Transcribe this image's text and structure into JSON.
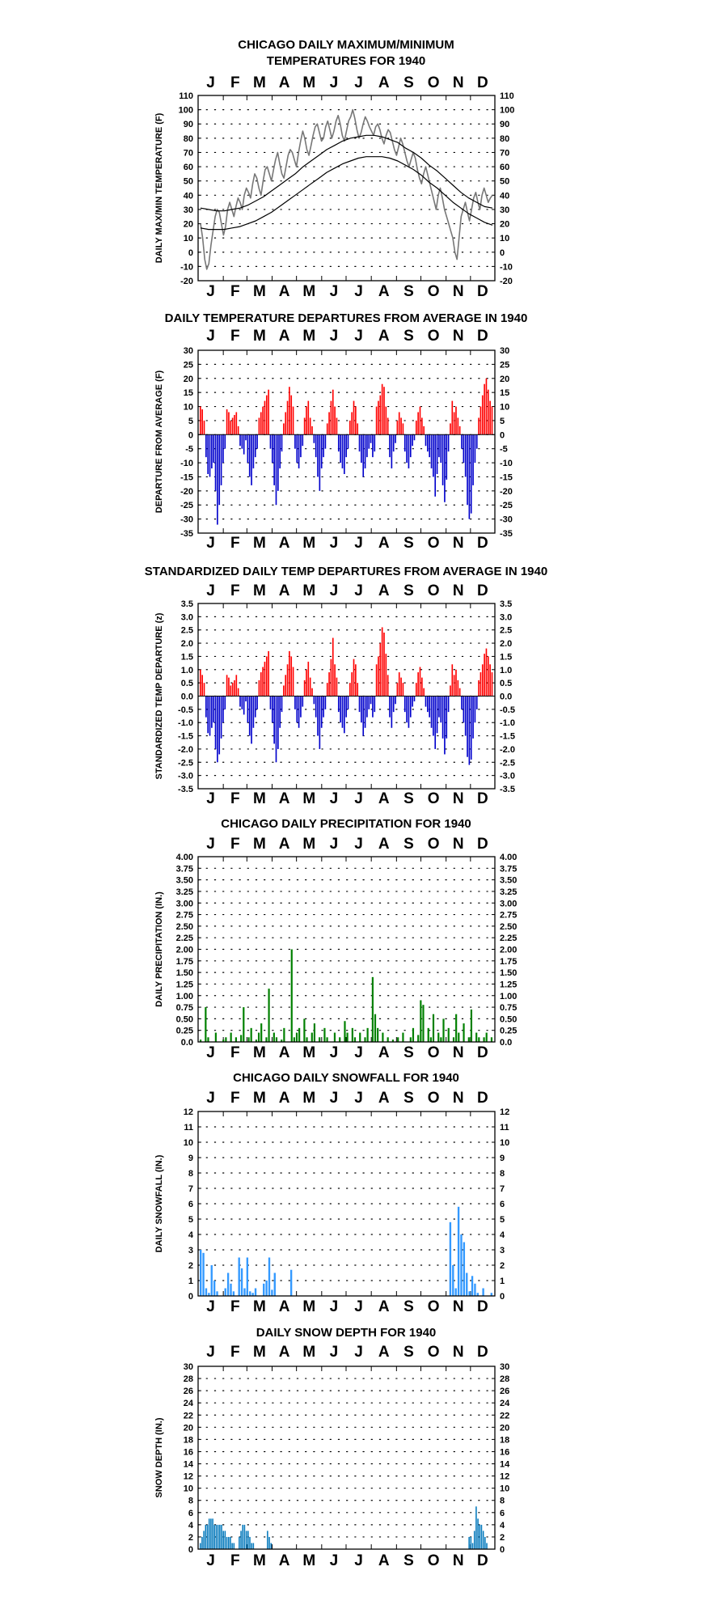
{
  "chart_data": [
    {
      "type": "line",
      "title": "CHICAGO DAILY MAXIMUM/MINIMUM",
      "subtitle": "TEMPERATURES FOR 1940",
      "ylabel": "DAILY MAX/MIN TEMPERATURE (F)",
      "ylim": [
        -20,
        110
      ],
      "yticks": [
        "110",
        "100",
        "90",
        "80",
        "70",
        "60",
        "50",
        "40",
        "30",
        "20",
        "10",
        "0",
        "-10",
        "-20"
      ],
      "months": [
        "J",
        "F",
        "M",
        "A",
        "M",
        "J",
        "J",
        "A",
        "S",
        "O",
        "N",
        "D"
      ],
      "grid": true,
      "series": [
        {
          "values": [
            20,
            10,
            -5,
            -12,
            -8,
            5,
            15,
            25,
            30,
            28,
            20,
            12,
            18,
            30,
            35,
            30,
            25,
            32,
            38,
            35,
            30,
            40,
            45,
            42,
            38,
            48,
            55,
            52,
            45,
            40,
            50,
            58,
            60,
            55,
            50,
            58,
            65,
            70,
            62,
            55,
            52,
            60,
            68,
            72,
            70,
            65,
            60,
            70,
            78,
            85,
            80,
            72,
            68,
            75,
            82,
            88,
            90,
            84,
            78,
            80,
            88,
            92,
            86,
            80,
            85,
            92,
            96,
            90,
            82,
            78,
            85,
            92,
            95,
            100,
            94,
            86,
            80,
            84,
            90,
            95,
            92,
            88,
            85,
            82,
            88,
            90,
            86,
            80,
            76,
            82,
            86,
            84,
            78,
            72,
            68,
            74,
            80,
            76,
            70,
            64,
            60,
            65,
            70,
            66,
            58,
            52,
            48,
            55,
            60,
            54,
            48,
            42,
            36,
            30,
            40,
            45,
            38,
            30,
            25,
            20,
            15,
            10,
            0,
            -5,
            10,
            25,
            30,
            35,
            28,
            22,
            30,
            38,
            42,
            35,
            30,
            40,
            45,
            40,
            35,
            38,
            40
          ]
        },
        {
          "values": [
            31,
            30,
            29,
            29,
            30,
            31,
            33,
            36,
            39,
            43,
            47,
            51,
            55,
            60,
            64,
            68,
            72,
            75,
            78,
            80,
            81,
            82,
            82,
            81,
            79,
            77,
            73,
            70,
            66,
            61,
            57,
            52,
            47,
            42,
            38,
            35,
            32,
            31
          ]
        },
        {
          "values": [
            17,
            16,
            16,
            16,
            17,
            18,
            20,
            22,
            25,
            28,
            32,
            36,
            40,
            44,
            48,
            52,
            56,
            59,
            62,
            64,
            66,
            67,
            67,
            67,
            66,
            64,
            61,
            58,
            54,
            49,
            45,
            40,
            35,
            31,
            27,
            24,
            21,
            19
          ]
        }
      ]
    },
    {
      "type": "bar",
      "title": "DAILY TEMPERATURE DEPARTURES FROM AVERAGE IN 1940",
      "ylabel": "DEPARTURE FROM AVERAGE (F)",
      "ylim": [
        -35,
        30
      ],
      "yticks": [
        "30",
        "25",
        "20",
        "15",
        "10",
        "5",
        "0",
        "-5",
        "-10",
        "-15",
        "-20",
        "-25",
        "-30",
        "-35"
      ],
      "months": [
        "J",
        "F",
        "M",
        "A",
        "M",
        "J",
        "J",
        "A",
        "S",
        "O",
        "N",
        "D"
      ],
      "grid": true,
      "values": [
        10,
        9,
        5,
        -8,
        -14,
        -15,
        -12,
        -10,
        -20,
        -32,
        -25,
        -18,
        -10,
        -5,
        9,
        8,
        5,
        6,
        7,
        8,
        3,
        -4,
        -5,
        -7,
        -2,
        -10,
        -15,
        -18,
        -12,
        -8,
        -5,
        6,
        8,
        10,
        12,
        14,
        16,
        -5,
        -10,
        -18,
        -25,
        -20,
        -12,
        -6,
        4,
        8,
        12,
        17,
        14,
        10,
        -5,
        -10,
        -12,
        -8,
        -4,
        6,
        10,
        12,
        6,
        3,
        -3,
        -8,
        -15,
        -20,
        -12,
        -8,
        -5,
        4,
        8,
        12,
        16,
        10,
        6,
        -6,
        -10,
        -12,
        -14,
        -8,
        -5,
        5,
        8,
        12,
        10,
        4,
        -6,
        -10,
        -15,
        -12,
        -8,
        -5,
        -3,
        -8,
        -6,
        10,
        12,
        14,
        18,
        17,
        10,
        6,
        -8,
        -12,
        -6,
        -3,
        5,
        8,
        6,
        4,
        -6,
        -10,
        -12,
        -8,
        -4,
        -2,
        5,
        8,
        10,
        6,
        3,
        -4,
        -6,
        -8,
        -12,
        -15,
        -22,
        -14,
        -8,
        -10,
        -18,
        -24,
        -16,
        -6,
        4,
        12,
        8,
        10,
        6,
        3,
        -5,
        -10,
        -15,
        -25,
        -30,
        -28,
        -18,
        -10,
        -5,
        6,
        10,
        14,
        18,
        20,
        16,
        12,
        10
      ],
      "colors": {
        "positive": "#ff0000",
        "negative": "#0000cc"
      }
    },
    {
      "type": "bar",
      "title": "STANDARDIZED DAILY TEMP DEPARTURES FROM AVERAGE IN 1940",
      "ylabel": "STANDARDIZED TEMP DEPARTURE (z)",
      "ylim": [
        -3.5,
        3.5
      ],
      "yticks": [
        "3.5",
        "3.0",
        "2.5",
        "2.0",
        "1.5",
        "1.0",
        "0.5",
        "0.0",
        "-0.5",
        "-1.0",
        "-1.5",
        "-2.0",
        "-2.5",
        "-3.0",
        "-3.5"
      ],
      "months": [
        "J",
        "F",
        "M",
        "A",
        "M",
        "J",
        "J",
        "A",
        "S",
        "O",
        "N",
        "D"
      ],
      "grid": true,
      "values": [
        1.0,
        0.8,
        0.5,
        -0.8,
        -1.4,
        -1.5,
        -1.2,
        -1.0,
        -2.0,
        -2.5,
        -2.2,
        -1.6,
        -1.0,
        -0.5,
        0.8,
        0.7,
        0.4,
        0.5,
        0.6,
        0.8,
        0.3,
        -0.4,
        -0.5,
        -0.7,
        -0.2,
        -1.0,
        -1.5,
        -1.8,
        -1.2,
        -0.8,
        -0.5,
        0.6,
        0.9,
        1.1,
        1.3,
        1.5,
        1.7,
        -0.5,
        -1.0,
        -1.8,
        -2.5,
        -2.0,
        -1.2,
        -0.6,
        0.4,
        0.8,
        1.2,
        1.7,
        1.5,
        1.1,
        -0.5,
        -1.0,
        -1.2,
        -0.8,
        -0.4,
        0.6,
        1.0,
        1.3,
        0.7,
        0.3,
        -0.3,
        -0.8,
        -1.5,
        -2.0,
        -1.2,
        -0.8,
        -0.5,
        0.5,
        0.9,
        1.4,
        2.2,
        1.2,
        0.7,
        -0.6,
        -1.0,
        -1.2,
        -1.4,
        -0.8,
        -0.5,
        0.5,
        0.9,
        1.4,
        1.2,
        0.5,
        -0.6,
        -1.0,
        -1.5,
        -1.2,
        -0.8,
        -0.5,
        -0.3,
        -0.8,
        -0.6,
        1.2,
        1.5,
        2.0,
        2.6,
        2.4,
        1.6,
        0.8,
        -0.8,
        -1.2,
        -0.6,
        -0.3,
        0.5,
        0.9,
        0.7,
        0.5,
        -0.6,
        -1.0,
        -1.2,
        -0.8,
        -0.4,
        -0.2,
        0.5,
        0.9,
        1.1,
        0.7,
        0.3,
        -0.4,
        -0.6,
        -0.8,
        -1.2,
        -1.5,
        -2.0,
        -1.4,
        -0.8,
        -1.0,
        -1.6,
        -2.2,
        -1.6,
        -0.6,
        0.4,
        1.2,
        0.8,
        1.0,
        0.6,
        0.3,
        -0.5,
        -1.0,
        -1.5,
        -2.3,
        -2.6,
        -2.4,
        -1.6,
        -1.0,
        -0.5,
        0.6,
        0.9,
        1.2,
        1.6,
        1.8,
        1.5,
        1.2,
        0.9
      ],
      "colors": {
        "positive": "#ff0000",
        "negative": "#0000cc"
      }
    },
    {
      "type": "bar",
      "title": "CHICAGO DAILY PRECIPITATION FOR 1940",
      "ylabel": "DAILY PRECIPITATION (IN.)",
      "ylim": [
        0,
        4
      ],
      "yticks": [
        "4.00",
        "3.75",
        "3.50",
        "3.25",
        "3.00",
        "2.75",
        "2.50",
        "2.25",
        "2.00",
        "1.75",
        "1.50",
        "1.25",
        "1.00",
        "0.75",
        "0.50",
        "0.25",
        "0.0"
      ],
      "months": [
        "J",
        "F",
        "M",
        "A",
        "M",
        "J",
        "J",
        "A",
        "S",
        "O",
        "N",
        "D"
      ],
      "grid": true,
      "values": [
        0.05,
        0,
        0.75,
        0.1,
        0,
        0,
        0.2,
        0,
        0,
        0.05,
        0.1,
        0,
        0.2,
        0,
        0.1,
        0,
        0.15,
        0.75,
        0,
        0.1,
        0.3,
        0,
        0.05,
        0.2,
        0.4,
        0,
        0.1,
        1.15,
        0,
        0.2,
        0.1,
        0,
        0.05,
        0.3,
        0,
        0,
        2.0,
        0.1,
        0.2,
        0.3,
        0,
        0.5,
        0.1,
        0,
        0.2,
        0.4,
        0,
        0.1,
        0,
        0.3,
        0.1,
        0,
        0,
        0.2,
        0,
        0.1,
        0,
        0.45,
        0.2,
        0,
        0.3,
        0.1,
        0,
        0.2,
        0,
        0.1,
        0.3,
        0,
        1.4,
        0.6,
        0.3,
        0,
        0.2,
        0,
        0.1,
        0,
        0.05,
        0,
        0.1,
        0,
        0.2,
        0,
        0,
        0.1,
        0.3,
        0,
        0.15,
        0.9,
        0.8,
        0,
        0.3,
        0.1,
        0.6,
        0,
        0.2,
        0.1,
        0.5,
        0,
        0.3,
        0,
        0.1,
        0.6,
        0.2,
        0,
        0.4,
        0,
        0.1,
        0.7,
        0,
        0.2,
        0.1,
        0,
        0.1,
        0.2,
        0,
        0.1
      ],
      "color": "#008000"
    },
    {
      "type": "bar",
      "title": "CHICAGO DAILY SNOWFALL FOR 1940",
      "ylabel": "DAILY SNOWFALL (IN.)",
      "ylim": [
        0,
        12
      ],
      "yticks": [
        "12",
        "11",
        "10",
        "9",
        "8",
        "7",
        "6",
        "5",
        "4",
        "3",
        "2",
        "1",
        "0"
      ],
      "months": [
        "J",
        "F",
        "M",
        "A",
        "M",
        "J",
        "J",
        "A",
        "S",
        "O",
        "N",
        "D"
      ],
      "grid": true,
      "values": [
        3.0,
        2.8,
        0.5,
        0.2,
        2.0,
        1.0,
        0.3,
        0,
        0,
        0.5,
        1.5,
        0.8,
        0.3,
        0,
        2.5,
        1.8,
        0.5,
        2.5,
        0.3,
        0.2,
        0.5,
        0,
        0,
        0.8,
        1.0,
        2.5,
        0.4,
        1.5,
        0,
        0,
        0,
        0,
        0,
        1.7,
        0,
        0,
        0,
        0,
        0,
        0,
        0,
        0,
        0,
        0,
        0,
        0,
        0,
        0,
        0,
        0,
        0,
        0,
        0,
        0,
        0,
        0,
        0,
        0,
        0,
        0,
        0,
        0,
        0,
        0,
        0,
        0,
        0,
        0,
        0,
        0,
        0,
        0,
        0,
        0,
        0,
        0,
        0,
        0,
        0,
        0,
        0,
        0,
        0,
        0,
        0,
        0,
        0,
        0,
        0,
        0,
        0,
        4.8,
        2.0,
        0.5,
        5.8,
        4.0,
        3.5,
        1.5,
        0.3,
        1.3,
        0.8,
        0.2,
        0,
        0.5,
        0,
        0,
        0.2
      ],
      "color": "#3399ff"
    },
    {
      "type": "bar",
      "title": "DAILY SNOW DEPTH FOR 1940",
      "ylabel": "SNOW DEPTH (IN.)",
      "ylim": [
        0,
        30
      ],
      "yticks": [
        "30",
        "28",
        "26",
        "24",
        "22",
        "20",
        "18",
        "16",
        "14",
        "12",
        "10",
        "8",
        "6",
        "4",
        "2",
        "0"
      ],
      "months": [
        "J",
        "F",
        "M",
        "A",
        "M",
        "J",
        "J",
        "A",
        "S",
        "O",
        "N",
        "D"
      ],
      "grid": true,
      "values": [
        1,
        2,
        3,
        4,
        4,
        5,
        5,
        5,
        4,
        4,
        4,
        4,
        4,
        3,
        3,
        2,
        2,
        2,
        1,
        1,
        0,
        0,
        2,
        3,
        4,
        4,
        3,
        3,
        2,
        1,
        1,
        0,
        0,
        0,
        0,
        0,
        0,
        0,
        3,
        2,
        1,
        0,
        0,
        0,
        0,
        0,
        0,
        0,
        0,
        0,
        0,
        0,
        0,
        0,
        0,
        0,
        0,
        0,
        0,
        0,
        0,
        0,
        0,
        0,
        0,
        0,
        0,
        0,
        0,
        0,
        0,
        0,
        0,
        0,
        0,
        0,
        0,
        0,
        0,
        0,
        0,
        0,
        0,
        0,
        0,
        0,
        0,
        0,
        0,
        0,
        0,
        0,
        0,
        0,
        0,
        0,
        0,
        0,
        0,
        0,
        0,
        0,
        0,
        0,
        0,
        0,
        0,
        0,
        0,
        0,
        0,
        0,
        0,
        0,
        0,
        0,
        0,
        0,
        0,
        0,
        0,
        0,
        0,
        0,
        0,
        0,
        0,
        0,
        0,
        0,
        0,
        0,
        0,
        0,
        0,
        0,
        0,
        0,
        0,
        0,
        0,
        0,
        0,
        0,
        0,
        0,
        0,
        0,
        0,
        0,
        0,
        0,
        2,
        2,
        1,
        3,
        7,
        5,
        4,
        4,
        3,
        2,
        1,
        0,
        0,
        0
      ],
      "color": "#0077bb"
    }
  ]
}
